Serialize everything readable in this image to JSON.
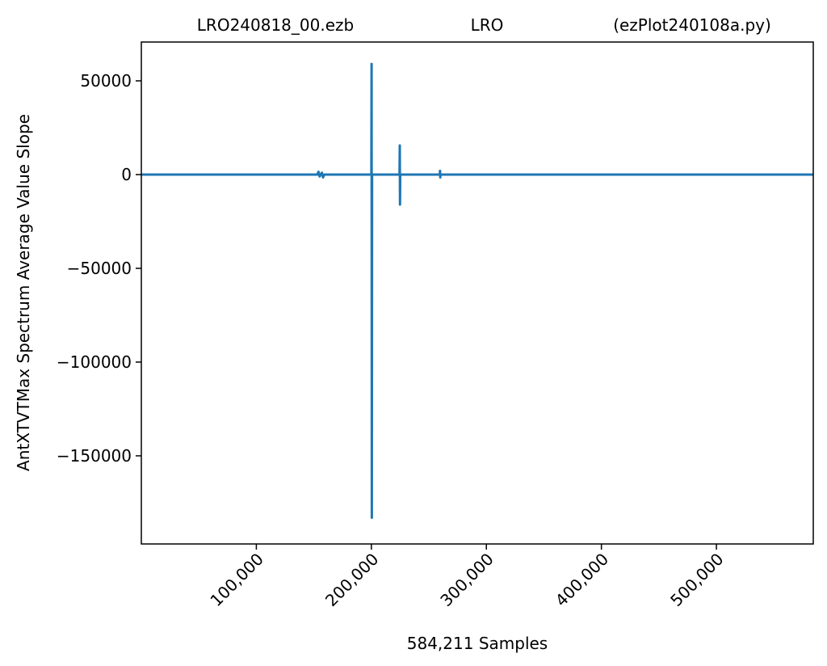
{
  "chart_data": {
    "type": "line",
    "title": [
      "LRO240818_00.ezb",
      "LRO",
      "(ezPlot240108a.py)"
    ],
    "xlabel": "584,211 Samples",
    "ylabel": "AntXTVTMax Spectrum Average Value Slope",
    "color": "#1f77b4",
    "x": [
      0,
      153000,
      154000,
      155000,
      157000,
      158000,
      159000,
      200000,
      200200,
      200400,
      200600,
      224500,
      224700,
      224900,
      225100,
      259500,
      259700,
      259900,
      260100,
      584210
    ],
    "values": [
      0,
      0,
      1500,
      -1000,
      1000,
      -1500,
      0,
      0,
      59000,
      -183000,
      0,
      0,
      15500,
      -16000,
      0,
      0,
      2000,
      -1500,
      0,
      0
    ],
    "xlim": [
      0,
      584210
    ],
    "ylim": [
      -197000,
      70700
    ],
    "xticks": [
      {
        "value": 100000,
        "label": "100,000"
      },
      {
        "value": 200000,
        "label": "200,000"
      },
      {
        "value": 300000,
        "label": "300,000"
      },
      {
        "value": 400000,
        "label": "400,000"
      },
      {
        "value": 500000,
        "label": "500,000"
      }
    ],
    "yticks": [
      50000,
      0,
      {
        "value": -50000,
        "label": "−50000"
      },
      {
        "value": -100000,
        "label": "−100000"
      },
      {
        "value": -150000,
        "label": "−150000"
      }
    ]
  }
}
